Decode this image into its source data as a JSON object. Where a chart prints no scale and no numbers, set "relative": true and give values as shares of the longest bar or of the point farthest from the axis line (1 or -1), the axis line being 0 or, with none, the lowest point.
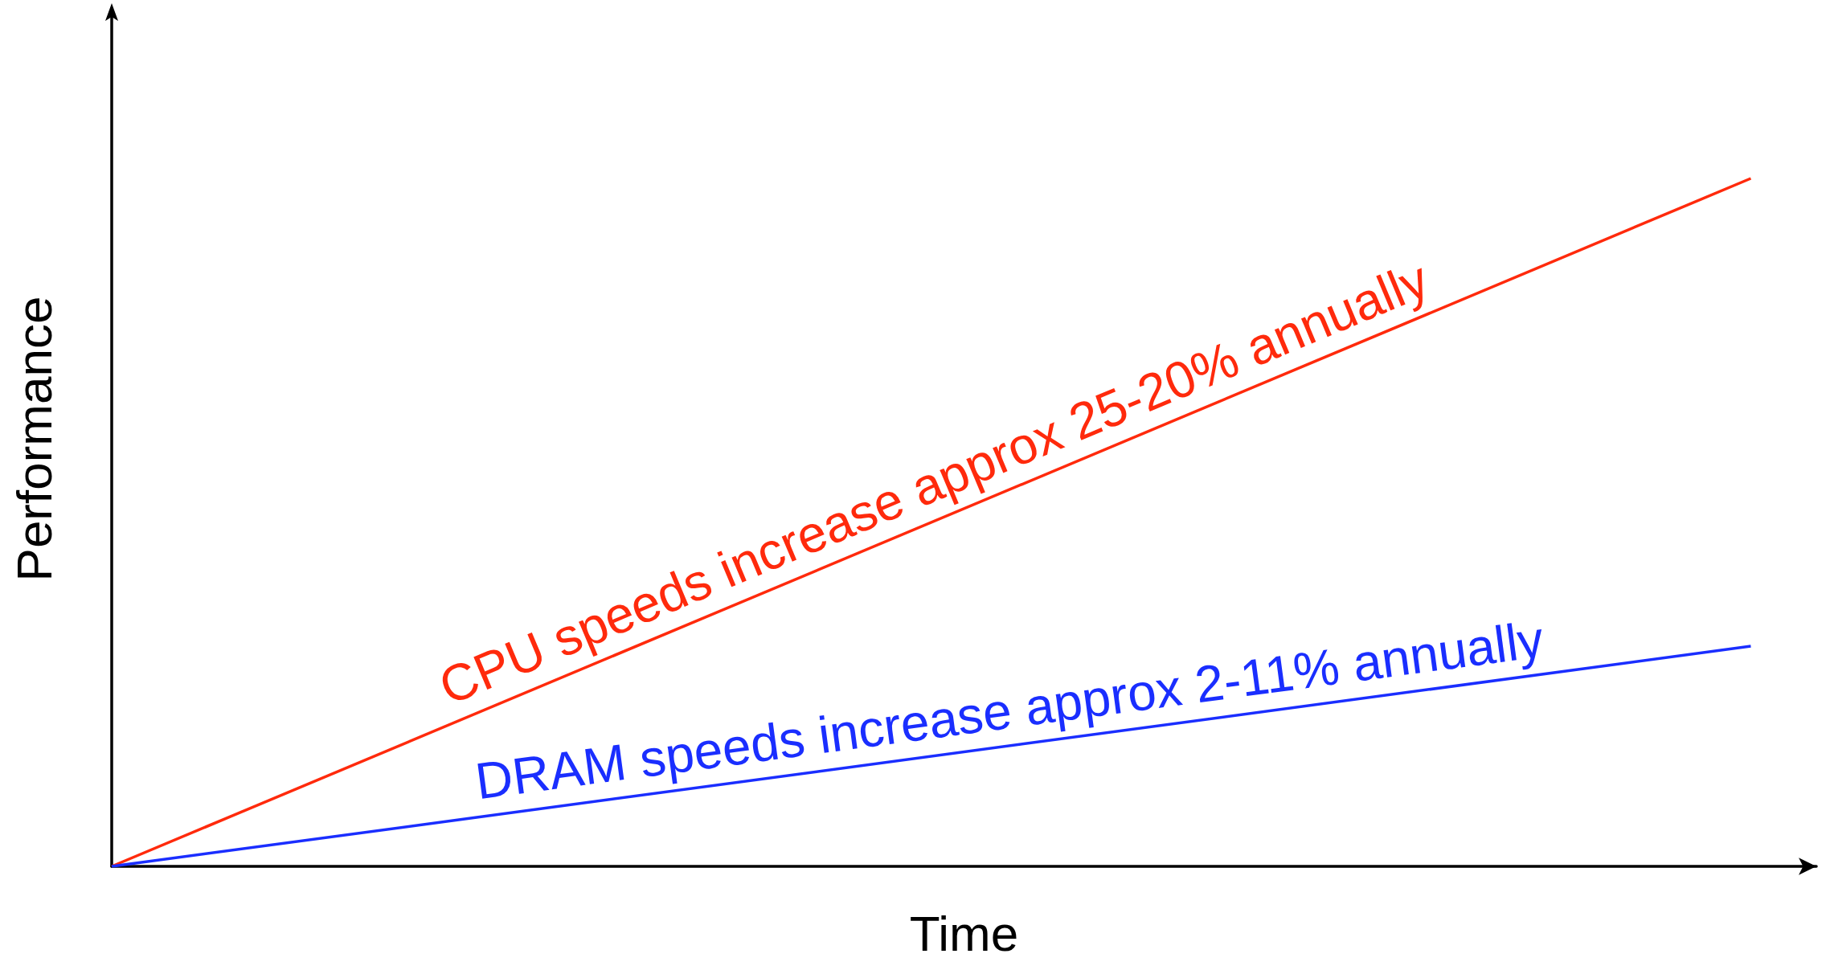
{
  "chart_data": {
    "type": "line",
    "relative": true,
    "xlabel": "Time",
    "ylabel": "Performance",
    "marker": "none",
    "categories": [
      null,
      null
    ],
    "series": [
      {
        "name": "CPU speeds increase approx 25-20% annually",
        "color": "#ff2a0c",
        "values": [
          0,
          1
        ]
      },
      {
        "name": "DRAM speeds increase approx 2-11% annually",
        "color": "#1a2eff",
        "values": [
          0,
          0.32
        ]
      }
    ]
  }
}
